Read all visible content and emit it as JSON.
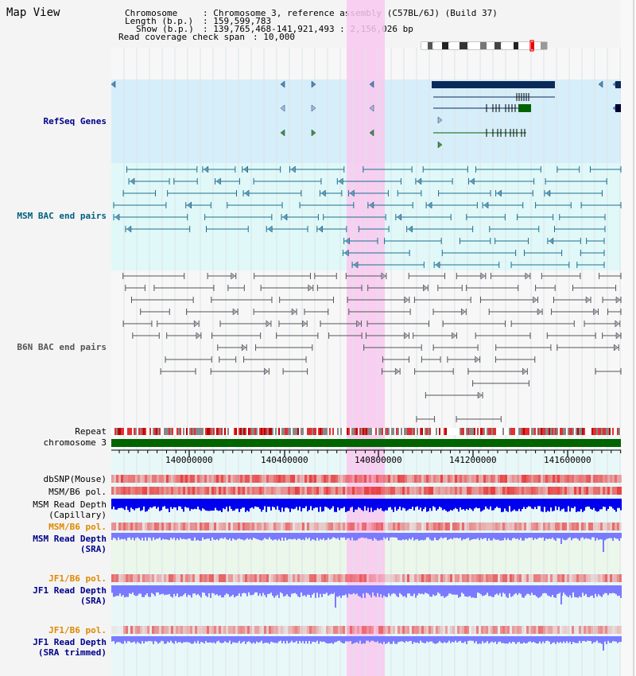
{
  "view_title": "Map View",
  "info": {
    "chromosome_key": "Chromosome",
    "chromosome_value": ": Chromosome 3, reference assembly (C57BL/6J) (Build 37)",
    "length_key": "Length (b.p.)",
    "length_value": ": 159,599,783",
    "show_key": "Show (b.p.)",
    "show_value": ": 139,765,468-141,921,493 : 2,156,026 bp",
    "coverage_key": "Read coverage check span",
    "coverage_value": ": 10,000"
  },
  "tracks": {
    "refseq": "RefSeq Genes",
    "msm_bac": "MSM BAC end pairs",
    "b6n_bac": "B6N BAC end pairs",
    "repeat": "Repeat",
    "chromosome": "chromosome 3",
    "dbsnp": "dbSNP(Mouse)",
    "msm_b6_pol_1": "MSM/B6 pol.",
    "msm_read_depth_cap_1": "MSM Read Depth",
    "msm_read_depth_cap_2": "(Capillary)",
    "msm_b6_pol_2": "MSM/B6 pol.",
    "msm_read_depth_sra_1": "MSM Read Depth",
    "msm_read_depth_sra_2": "(SRA)",
    "jf1_b6_pol_1": "JF1/B6 pol.",
    "jf1_read_depth_sra_1": "JF1 Read Depth",
    "jf1_read_depth_sra_2": "(SRA)",
    "jf1_b6_pol_2": "JF1/B6 pol.",
    "jf1_read_depth_trim_1": "JF1 Read Depth",
    "jf1_read_depth_trim_2": "(SRA trimmed)"
  },
  "axis": {
    "ticks": [
      "140000000",
      "140400000",
      "140800000",
      "141200000",
      "141600000"
    ]
  },
  "colors": {
    "highlight": "#f9c8f0",
    "refseq_bg": "#d6eef9",
    "msm_bg": "#e0f8f8",
    "gene_dark": "#0a2a5a",
    "gene_green": "#006400",
    "msm_pair": "#1f6f8f",
    "b6n_pair": "#555555",
    "chrom_green": "#006400",
    "snp_red": "#e84040",
    "depth_blue": "#0000ee",
    "depth_light": "#7a7aff"
  }
}
